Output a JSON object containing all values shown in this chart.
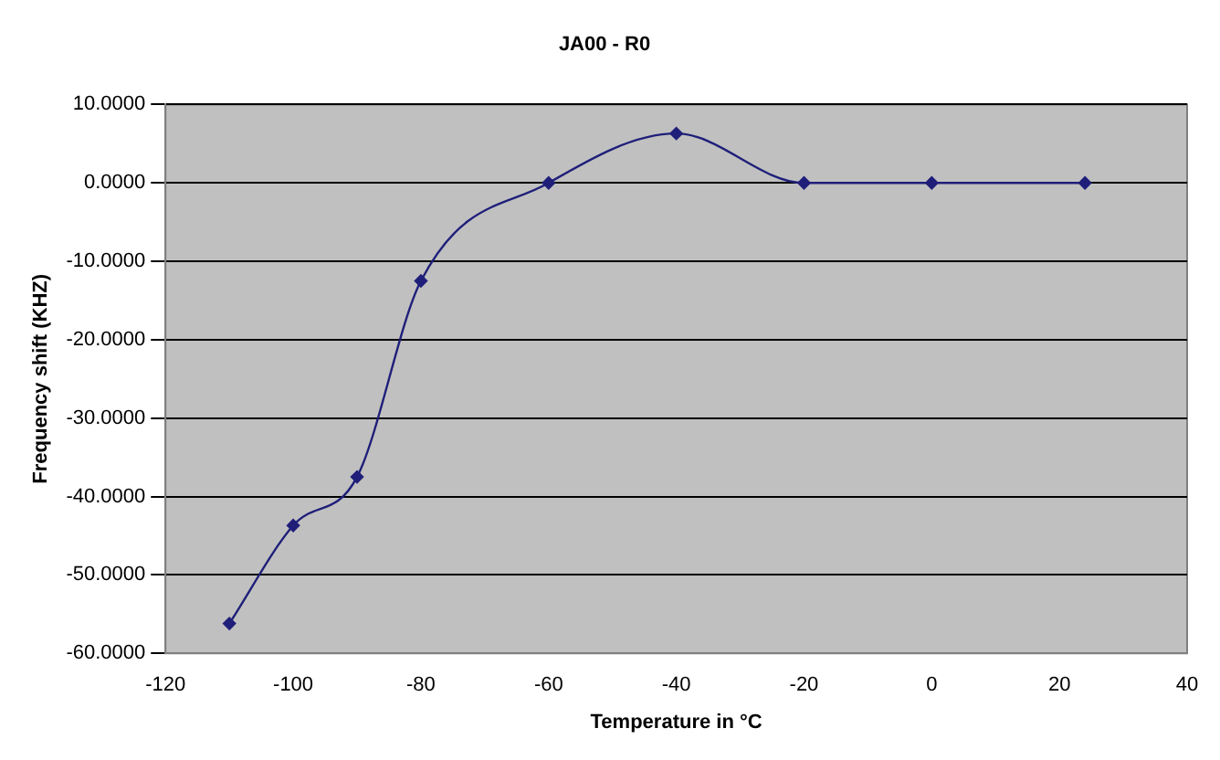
{
  "chart_data": {
    "type": "line",
    "title": "JA00 - R0",
    "xlabel": "Temperature in °C",
    "ylabel": "Frequency shift (KHZ)",
    "x": [
      -110,
      -100,
      -90,
      -80,
      -60,
      -40,
      -20,
      0,
      24
    ],
    "series": [
      {
        "color": "#1f1f7a",
        "values": [
          -56.2,
          -43.7,
          -37.5,
          -12.5,
          0,
          6.3,
          0,
          0,
          0
        ]
      }
    ],
    "xlim": [
      -120,
      40
    ],
    "xticks": [
      -120,
      -100,
      -80,
      -60,
      -40,
      -20,
      0,
      20,
      40
    ],
    "ylim": [
      -60,
      10
    ],
    "yticks": [
      {
        "value": -60,
        "label": "-60.0000"
      },
      {
        "value": -50,
        "label": "-50.0000"
      },
      {
        "value": -40,
        "label": "-40.0000"
      },
      {
        "value": -30,
        "label": "-30.0000"
      },
      {
        "value": -20,
        "label": "-20.0000"
      },
      {
        "value": -10,
        "label": "-10.0000"
      },
      {
        "value": 0,
        "label": "0.0000"
      },
      {
        "value": 10,
        "label": "10.0000"
      }
    ],
    "grid": "y",
    "legend": false,
    "marker": "diamond",
    "line_style": "solid"
  }
}
